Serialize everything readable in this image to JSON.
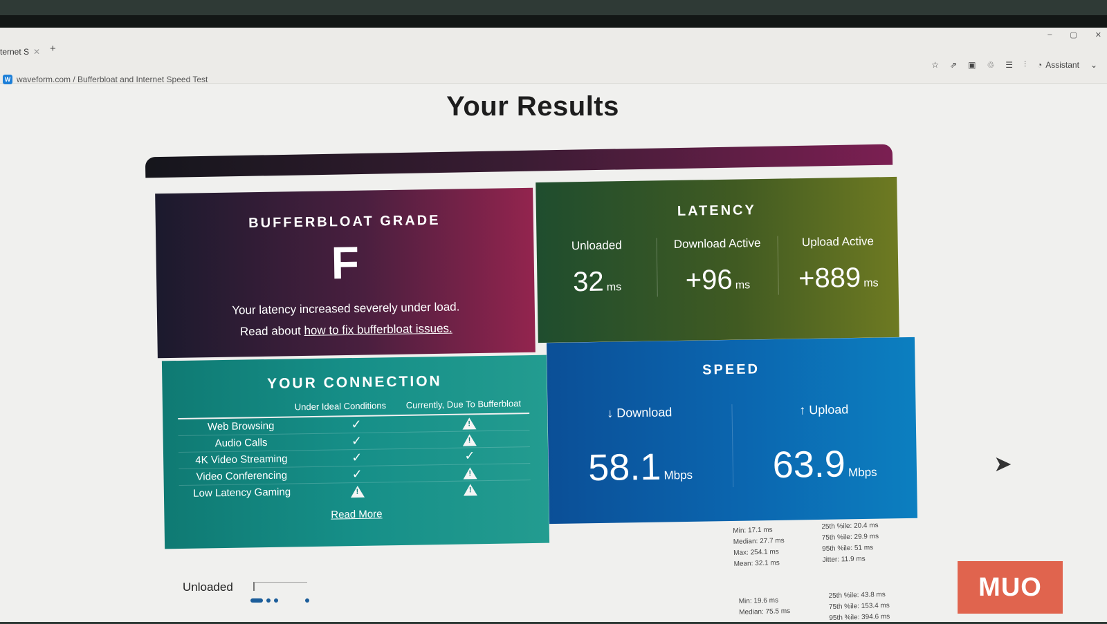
{
  "browser": {
    "tab_label": "ternet S",
    "new_tab": "+",
    "window_controls": [
      "–",
      "▢",
      "✕"
    ],
    "toolbar_icons": [
      "star-icon",
      "share-icon",
      "extension-icon",
      "puzzle-icon",
      "menu-icon",
      "audio-icon"
    ],
    "assistant_label": "Assistant",
    "breadcrumb": "waveform.com / Bufferbloat and Internet Speed Test"
  },
  "page": {
    "title": "Your Results"
  },
  "grade": {
    "title": "BUFFERBLOAT GRADE",
    "letter": "F",
    "line1": "Your latency increased severely under load.",
    "line2_prefix": "Read about ",
    "link": "how to fix bufferbloat issues."
  },
  "latency": {
    "title": "LATENCY",
    "cols": [
      {
        "label": "Unloaded",
        "value": "32",
        "unit": "ms"
      },
      {
        "label": "Download Active",
        "value": "+96",
        "unit": "ms"
      },
      {
        "label": "Upload Active",
        "value": "+889",
        "unit": "ms"
      }
    ]
  },
  "connection": {
    "title": "YOUR CONNECTION",
    "col_ideal": "Under Ideal Conditions",
    "col_current": "Currently, Due To Bufferbloat",
    "rows": [
      {
        "name": "Web Browsing",
        "ideal": "check",
        "current": "warn"
      },
      {
        "name": "Audio Calls",
        "ideal": "check",
        "current": "warn"
      },
      {
        "name": "4K Video Streaming",
        "ideal": "check",
        "current": "check"
      },
      {
        "name": "Video Conferencing",
        "ideal": "check",
        "current": "warn"
      },
      {
        "name": "Low Latency Gaming",
        "ideal": "warn",
        "current": "warn"
      }
    ],
    "read_more": "Read More"
  },
  "speed": {
    "title": "SPEED",
    "download": {
      "label": "↓ Download",
      "value": "58.1",
      "unit": "Mbps"
    },
    "upload": {
      "label": "↑ Upload",
      "value": "63.9",
      "unit": "Mbps"
    }
  },
  "stats1": {
    "left": [
      "Min: 17.1 ms",
      "Median: 27.7 ms",
      "Max: 254.1 ms",
      "Mean: 32.1 ms"
    ],
    "right": [
      "25th %ile: 20.4 ms",
      "75th %ile: 29.9 ms",
      "95th %ile: 51 ms",
      "Jitter: 11.9 ms"
    ]
  },
  "stats2": {
    "left": [
      "Min: 19.6 ms",
      "Median: 75.5 ms"
    ],
    "right": [
      "25th %ile: 43.8 ms",
      "75th %ile: 153.4 ms",
      "95th %ile: 394.6 ms"
    ]
  },
  "unloaded_label": "Unloaded",
  "logo_text": "MUO"
}
